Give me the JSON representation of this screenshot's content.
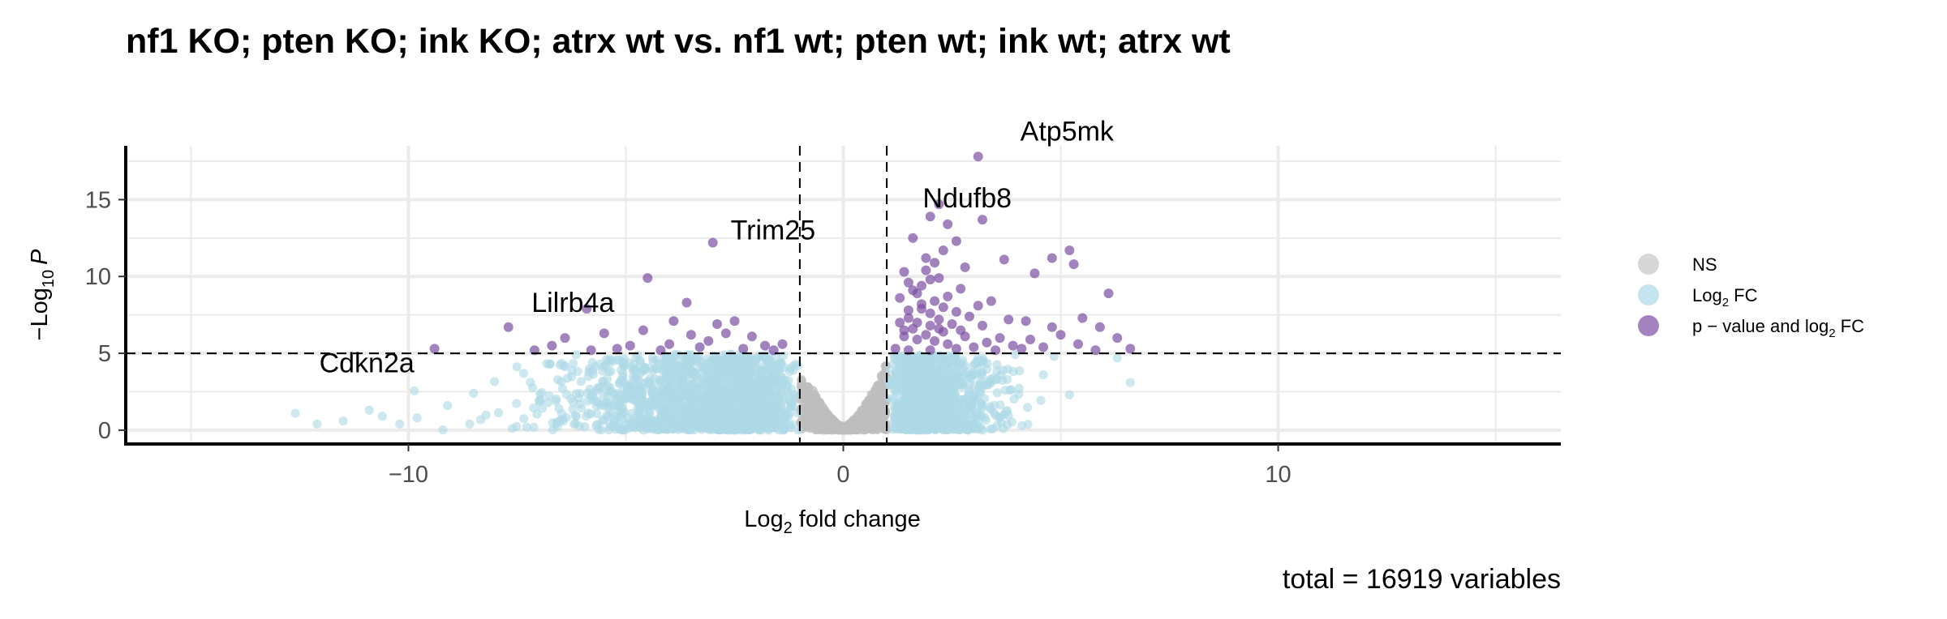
{
  "chart_data": {
    "type": "scatter",
    "title": "nf1 KO; pten KO; ink KO; atrx wt vs. nf1 wt; pten wt; ink wt; atrx wt",
    "xlabel": {
      "main": "Log",
      "sub": "2",
      "rest": " fold change"
    },
    "ylabel": {
      "prefix": "−Log",
      "sub": "10",
      "italic": "P"
    },
    "xlim": [
      -16.5,
      16.5
    ],
    "ylim": [
      -0.9,
      18.5
    ],
    "xticks": [
      -10,
      0,
      10
    ],
    "xtick_labels": [
      "−10",
      "0",
      "10"
    ],
    "yticks": [
      0,
      5,
      10,
      15
    ],
    "ytick_labels": [
      "0",
      "5",
      "10",
      "15"
    ],
    "fc_cutoff": 1,
    "p_cutoff": 5,
    "grid": true,
    "legend_position": "right",
    "legend": [
      {
        "key": "NS",
        "parts": [
          "NS"
        ],
        "color": "#bdbdbd"
      },
      {
        "key": "FC",
        "parts": [
          "Log",
          "2",
          " FC"
        ],
        "color": "#add8e6"
      },
      {
        "key": "PFC",
        "parts": [
          "p − value and log",
          "2",
          " FC"
        ],
        "color": "#7b4ea3"
      }
    ],
    "labeled_genes": [
      {
        "gene": "Atp5mk",
        "x": 3.1,
        "y": 17.8
      },
      {
        "gene": "Ndufb8",
        "x": 2.2,
        "y": 14.7
      },
      {
        "gene": "Trim25",
        "x": -3,
        "y": 12.2
      },
      {
        "gene": "Lilrb4a",
        "x": -5.9,
        "y": 7.9
      },
      {
        "gene": "Cdkn2a",
        "x": -9.4,
        "y": 5.3
      }
    ],
    "significant_points": [
      [
        -9.4,
        5.3
      ],
      [
        -7.7,
        6.7
      ],
      [
        -7.1,
        5.2
      ],
      [
        -6.7,
        5.5
      ],
      [
        -6.4,
        6.0
      ],
      [
        -5.9,
        7.9
      ],
      [
        -5.5,
        6.3
      ],
      [
        -5.2,
        5.3
      ],
      [
        -4.9,
        5.5
      ],
      [
        -4.5,
        9.9
      ],
      [
        -4.6,
        6.5
      ],
      [
        -4.2,
        5.2
      ],
      [
        -3.9,
        7.1
      ],
      [
        -3.6,
        8.3
      ],
      [
        -3.5,
        6.2
      ],
      [
        -3.3,
        5.4
      ],
      [
        -3.0,
        12.2
      ],
      [
        -2.9,
        6.9
      ],
      [
        -2.7,
        6.3
      ],
      [
        -2.5,
        7.1
      ],
      [
        -2.3,
        5.3
      ],
      [
        -2.1,
        6.1
      ],
      [
        -1.8,
        5.5
      ],
      [
        -1.6,
        5.2
      ],
      [
        -1.4,
        5.6
      ],
      [
        -4.0,
        5.6
      ],
      [
        -3.1,
        5.8
      ],
      [
        -5.8,
        5.2
      ],
      [
        3.1,
        17.8
      ],
      [
        2.2,
        14.7
      ],
      [
        2.0,
        13.9
      ],
      [
        2.4,
        13.4
      ],
      [
        3.2,
        13.7
      ],
      [
        1.6,
        12.5
      ],
      [
        2.6,
        12.3
      ],
      [
        1.9,
        11.2
      ],
      [
        2.3,
        11.7
      ],
      [
        1.4,
        10.3
      ],
      [
        2.8,
        10.6
      ],
      [
        3.7,
        11.1
      ],
      [
        4.8,
        11.2
      ],
      [
        5.2,
        11.7
      ],
      [
        5.3,
        10.8
      ],
      [
        4.4,
        10.2
      ],
      [
        6.1,
        8.9
      ],
      [
        1.3,
        8.6
      ],
      [
        1.5,
        9.6
      ],
      [
        1.7,
        8.9
      ],
      [
        1.8,
        9.4
      ],
      [
        2.0,
        9.8
      ],
      [
        2.1,
        8.4
      ],
      [
        2.2,
        9.9
      ],
      [
        2.4,
        8.7
      ],
      [
        2.7,
        9.2
      ],
      [
        3.4,
        8.4
      ],
      [
        3.1,
        8.1
      ],
      [
        2.6,
        7.7
      ],
      [
        2.9,
        7.4
      ],
      [
        3.8,
        7.2
      ],
      [
        1.3,
        7.0
      ],
      [
        1.5,
        7.3
      ],
      [
        1.6,
        6.6
      ],
      [
        1.8,
        7.9
      ],
      [
        2.0,
        6.8
      ],
      [
        2.2,
        7.2
      ],
      [
        2.3,
        6.4
      ],
      [
        2.5,
        6.9
      ],
      [
        4.2,
        7.1
      ],
      [
        4.8,
        6.7
      ],
      [
        5.5,
        7.3
      ],
      [
        5.9,
        6.7
      ],
      [
        1.4,
        6.1
      ],
      [
        1.7,
        5.9
      ],
      [
        1.9,
        6.2
      ],
      [
        2.1,
        5.8
      ],
      [
        2.4,
        5.6
      ],
      [
        2.8,
        6.1
      ],
      [
        3.3,
        5.7
      ],
      [
        3.6,
        6.0
      ],
      [
        3.9,
        5.5
      ],
      [
        4.3,
        5.9
      ],
      [
        4.6,
        5.4
      ],
      [
        5.0,
        6.2
      ],
      [
        5.4,
        5.6
      ],
      [
        6.3,
        6.0
      ],
      [
        6.6,
        5.3
      ],
      [
        1.2,
        5.3
      ],
      [
        1.5,
        5.2
      ],
      [
        2.0,
        5.2
      ],
      [
        2.6,
        5.3
      ],
      [
        3.0,
        5.4
      ],
      [
        3.5,
        5.2
      ],
      [
        4.1,
        5.3
      ],
      [
        5.8,
        5.2
      ],
      [
        1.6,
        9.1
      ],
      [
        1.9,
        10.4
      ],
      [
        2.1,
        10.9
      ],
      [
        1.8,
        8.2
      ],
      [
        2.3,
        8.0
      ],
      [
        1.5,
        7.8
      ],
      [
        1.7,
        7.0
      ],
      [
        2.0,
        7.6
      ],
      [
        1.4,
        6.5
      ],
      [
        2.2,
        6.6
      ],
      [
        2.7,
        6.5
      ],
      [
        3.2,
        6.8
      ]
    ]
  },
  "caption": "total = 16919 variables"
}
